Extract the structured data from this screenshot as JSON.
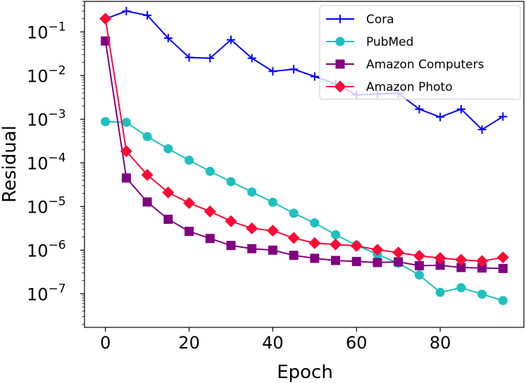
{
  "chart_data": {
    "type": "line",
    "title": "",
    "xlabel": "Epoch",
    "ylabel": "Residual",
    "yscale": "log",
    "xlim": [
      -5,
      100
    ],
    "ylim": [
      1.7e-08,
      0.5
    ],
    "xticks": [
      0,
      20,
      40,
      60,
      80
    ],
    "xtick_labels": [
      "0",
      "20",
      "40",
      "60",
      "80"
    ],
    "yticks": [
      {
        "value": 0.1,
        "base": "10",
        "exp": "−1"
      },
      {
        "value": 0.01,
        "base": "10",
        "exp": "−2"
      },
      {
        "value": 0.001,
        "base": "10",
        "exp": "−3"
      },
      {
        "value": 0.0001,
        "base": "10",
        "exp": "−4"
      },
      {
        "value": 1e-05,
        "base": "10",
        "exp": "−5"
      },
      {
        "value": 1e-06,
        "base": "10",
        "exp": "−6"
      },
      {
        "value": 1e-07,
        "base": "10",
        "exp": "−7"
      }
    ],
    "grid": false,
    "legend_position": "top-right",
    "series": [
      {
        "name": "Cora",
        "color": "#0000ff",
        "marker": "plus",
        "x": [
          0,
          5,
          10,
          15,
          20,
          25,
          30,
          35,
          40,
          45,
          50,
          55,
          60,
          65,
          70,
          75,
          80,
          85,
          90,
          95
        ],
        "values": [
          0.2,
          0.3,
          0.24,
          0.072,
          0.026,
          0.025,
          0.066,
          0.025,
          0.0125,
          0.014,
          0.0095,
          0.0065,
          0.0036,
          0.0038,
          0.0039,
          0.0017,
          0.00112,
          0.0017,
          0.00058,
          0.00115
        ]
      },
      {
        "name": "PubMed",
        "color": "#1ec0be",
        "marker": "circle",
        "x": [
          0,
          5,
          10,
          15,
          20,
          25,
          30,
          35,
          40,
          45,
          50,
          55,
          60,
          65,
          70,
          75,
          80,
          85,
          90,
          95
        ],
        "values": [
          0.00088,
          0.00085,
          0.0004,
          0.00021,
          0.000115,
          6.4e-05,
          3.7e-05,
          2.15e-05,
          1.25e-05,
          7e-06,
          4.2e-06,
          2.25e-06,
          1.3e-06,
          8e-07,
          5e-07,
          2.7e-07,
          1.08e-07,
          1.38e-07,
          9.8e-08,
          7e-08
        ]
      },
      {
        "name": "Amazon Computers",
        "color": "#800080",
        "marker": "square",
        "x": [
          0,
          5,
          10,
          15,
          20,
          25,
          30,
          35,
          40,
          45,
          50,
          55,
          60,
          65,
          70,
          75,
          80,
          85,
          90,
          95
        ],
        "values": [
          0.062,
          4.5e-05,
          1.27e-05,
          5.1e-06,
          2.7e-06,
          1.85e-06,
          1.28e-06,
          1.08e-06,
          1e-06,
          7.6e-07,
          6.5e-07,
          5.8e-07,
          5.5e-07,
          5.2e-07,
          5.4e-07,
          4.4e-07,
          4.5e-07,
          4e-07,
          3.9e-07,
          3.8e-07
        ]
      },
      {
        "name": "Amazon Photo",
        "color": "#ff0a36",
        "marker": "diamond",
        "x": [
          0,
          5,
          10,
          15,
          20,
          25,
          30,
          35,
          40,
          45,
          50,
          55,
          60,
          65,
          70,
          75,
          80,
          85,
          90,
          95
        ],
        "values": [
          0.2,
          0.000185,
          5.3e-05,
          2.1e-05,
          1.2e-05,
          7.7e-06,
          4.6e-06,
          3.15e-06,
          2.8e-06,
          1.9e-06,
          1.45e-06,
          1.35e-06,
          1.25e-06,
          1.02e-06,
          8.8e-07,
          7.4e-07,
          6.6e-07,
          6e-07,
          5.6e-07,
          6.8e-07
        ]
      }
    ]
  }
}
